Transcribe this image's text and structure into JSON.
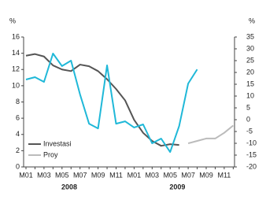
{
  "chart_data": {
    "type": "line",
    "y_label": "%",
    "y2_label": "%",
    "categories": [
      "M01",
      null,
      "M03",
      null,
      "M05",
      null,
      "M07",
      null,
      "M09",
      null,
      "M11",
      null,
      "M01",
      null,
      "M03",
      null,
      "M05",
      null,
      "M07",
      null,
      "M09",
      null,
      "M11",
      null
    ],
    "year_labels": [
      "2008",
      "2009"
    ],
    "ylim": [
      0,
      16
    ],
    "yticks": [
      0,
      2,
      4,
      6,
      8,
      10,
      12,
      14,
      16
    ],
    "y2lim": [
      -20,
      35
    ],
    "y2ticks": [
      -20,
      -15,
      -10,
      -5,
      0,
      5,
      10,
      15,
      20,
      25,
      30,
      35
    ],
    "legend": "lower left",
    "series": [
      {
        "name": "Investasi",
        "color": "#555555",
        "values": [
          13.7,
          13.9,
          13.6,
          12.5,
          12.0,
          11.8,
          12.6,
          12.4,
          11.8,
          10.8,
          9.6,
          8.2,
          5.8,
          4.2,
          3.2,
          2.6,
          2.8,
          2.7,
          null,
          null,
          null,
          null,
          null,
          null
        ]
      },
      {
        "name": "Proy",
        "color": "#bbbbbb",
        "values": [
          null,
          null,
          null,
          null,
          null,
          null,
          null,
          null,
          null,
          null,
          null,
          null,
          null,
          null,
          null,
          null,
          null,
          null,
          2.9,
          3.2,
          3.5,
          3.5,
          4.2,
          5.1
        ]
      },
      {
        "color": "#1fb8d8",
        "axis": "y2",
        "values": [
          17,
          18,
          16,
          28,
          22.7,
          25,
          10.7,
          -1.7,
          -3.7,
          23,
          -1.7,
          -0.7,
          -3.3,
          -2,
          -10,
          -8,
          -13.7,
          -2.7,
          15.3,
          21.3,
          null,
          null,
          null,
          null
        ]
      }
    ]
  }
}
